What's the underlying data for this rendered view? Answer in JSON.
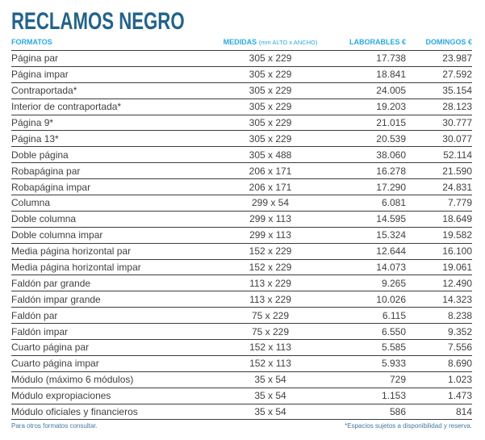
{
  "title": "RECLAMOS NEGRO",
  "colors": {
    "title": "#23638b",
    "header": "#29a9e1",
    "body_text": "#414042",
    "rule": "#3c3c3c",
    "footnote": "#44779c"
  },
  "table": {
    "headers": {
      "formatos": "FORMATOS",
      "medidas": "MEDIDAS",
      "medidas_sub": "(mm ALTO x ANCHO)",
      "laborables": "LABORABLES €",
      "domingos": "DOMINGOS €"
    },
    "rows": [
      {
        "formato": "Página par",
        "medidas": "305 x 229",
        "laborables": "17.738",
        "domingos": "23.987"
      },
      {
        "formato": "Página impar",
        "medidas": "305 x 229",
        "laborables": "18.841",
        "domingos": "27.592"
      },
      {
        "formato": "Contraportada*",
        "medidas": "305 x 229",
        "laborables": "24.005",
        "domingos": "35.154"
      },
      {
        "formato": "Interior de contraportada*",
        "medidas": "305 x 229",
        "laborables": "19.203",
        "domingos": "28.123"
      },
      {
        "formato": "Página 9*",
        "medidas": "305 x 229",
        "laborables": "21.015",
        "domingos": "30.777"
      },
      {
        "formato": "Página 13*",
        "medidas": "305 x 229",
        "laborables": "20.539",
        "domingos": "30.077"
      },
      {
        "formato": "Doble página",
        "medidas": "305 x 488",
        "laborables": "38.060",
        "domingos": "52.114"
      },
      {
        "formato": "Robapágina par",
        "medidas": "206 x 171",
        "laborables": "16.278",
        "domingos": "21.590"
      },
      {
        "formato": "Robapágina impar",
        "medidas": "206 x 171",
        "laborables": "17.290",
        "domingos": "24.831"
      },
      {
        "formato": "Columna",
        "medidas": "299 x 54",
        "laborables": "6.081",
        "domingos": "7.779"
      },
      {
        "formato": "Doble columna",
        "medidas": "299 x 113",
        "laborables": "14.595",
        "domingos": "18.649"
      },
      {
        "formato": "Doble columna impar",
        "medidas": "299 x 113",
        "laborables": "15.324",
        "domingos": "19.582"
      },
      {
        "formato": "Media página horizontal par",
        "medidas": "152 x 229",
        "laborables": "12.644",
        "domingos": "16.100"
      },
      {
        "formato": "Media página horizontal impar",
        "medidas": "152 x 229",
        "laborables": "14.073",
        "domingos": "19.061"
      },
      {
        "formato": "Faldón par grande",
        "medidas": "113 x 229",
        "laborables": "9.265",
        "domingos": "12.490"
      },
      {
        "formato": "Faldón impar grande",
        "medidas": "113 x 229",
        "laborables": "10.026",
        "domingos": "14.323"
      },
      {
        "formato": "Faldón par",
        "medidas": "75 x 229",
        "laborables": "6.115",
        "domingos": "8.238"
      },
      {
        "formato": "Faldón impar",
        "medidas": "75 x 229",
        "laborables": "6.550",
        "domingos": "9.352"
      },
      {
        "formato": "Cuarto página par",
        "medidas": "152 x 113",
        "laborables": "5.585",
        "domingos": "7.556"
      },
      {
        "formato": "Cuarto página impar",
        "medidas": "152 x 113",
        "laborables": "5.933",
        "domingos": "8.690"
      },
      {
        "formato": "Módulo (máximo 6 módulos)",
        "medidas": "35 x 54",
        "laborables": "729",
        "domingos": "1.023"
      },
      {
        "formato": "Módulo expropiaciones",
        "medidas": "35 x 54",
        "laborables": "1.153",
        "domingos": "1.473"
      },
      {
        "formato": "Módulo oficiales y financieros",
        "medidas": "35 x 54",
        "laborables": "586",
        "domingos": "814"
      }
    ]
  },
  "footer": {
    "left": "Para otros formatos consultar.",
    "right": "*Espacios sujetos a disponibilidad y reserva."
  }
}
